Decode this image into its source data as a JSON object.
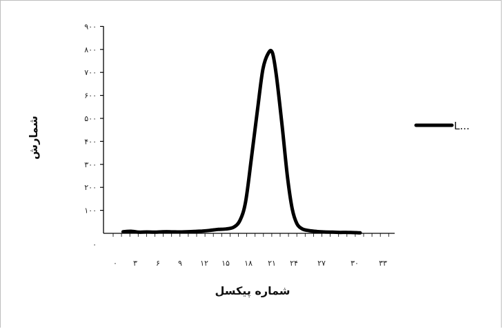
{
  "chart_data": {
    "type": "line",
    "title": "",
    "xlabel": "شماره پیکسل",
    "ylabel": "شمارش",
    "ylim": [
      0,
      900
    ],
    "xlim": [
      0,
      34
    ],
    "y_ticks": [
      {
        "value": 0,
        "label": "۰"
      },
      {
        "value": 100,
        "label": "۱۰۰"
      },
      {
        "value": 200,
        "label": "۲۰۰"
      },
      {
        "value": 300,
        "label": "۳۰۰"
      },
      {
        "value": 400,
        "label": "۴۰۰"
      },
      {
        "value": 500,
        "label": "۵۰۰"
      },
      {
        "value": 600,
        "label": "۶۰۰"
      },
      {
        "value": 700,
        "label": "۷۰۰"
      },
      {
        "value": 800,
        "label": "۸۰۰"
      },
      {
        "value": 900,
        "label": "۹۰۰"
      }
    ],
    "x_ticks": [
      {
        "value": 0,
        "label": "۰"
      },
      {
        "value": 3,
        "label": "۳"
      },
      {
        "value": 6,
        "label": "۶"
      },
      {
        "value": 9,
        "label": "۹"
      },
      {
        "value": 12,
        "label": "۱۲"
      },
      {
        "value": 15,
        "label": "۱۵"
      },
      {
        "value": 18,
        "label": "۱۸"
      },
      {
        "value": 21,
        "label": "۲۱"
      },
      {
        "value": 24,
        "label": "۲۴"
      },
      {
        "value": 27,
        "label": "۲۷"
      },
      {
        "value": 30,
        "label": "۳۰"
      },
      {
        "value": 33,
        "label": "۳۳"
      }
    ],
    "series": [
      {
        "name": "L...",
        "color": "#000000",
        "x": [
          1,
          2,
          3,
          4,
          5,
          6,
          7,
          8,
          9,
          10,
          11,
          12,
          13,
          14,
          15,
          15.8,
          16.5,
          17.2,
          18,
          18.7,
          19.4,
          19.9,
          20.4,
          21.1,
          21.8,
          22.4,
          23,
          23.7,
          24.5,
          25.5,
          26.5,
          27.5,
          28.5,
          29.5,
          30.5,
          31
        ],
        "values": [
          10,
          12,
          8,
          9,
          8,
          10,
          10,
          9,
          10,
          11,
          13,
          16,
          20,
          22,
          30,
          60,
          140,
          320,
          540,
          720,
          790,
          790,
          690,
          480,
          250,
          110,
          45,
          22,
          15,
          11,
          9,
          8,
          7,
          7,
          6,
          5
        ]
      }
    ],
    "legend_position": "right",
    "grid": false
  }
}
